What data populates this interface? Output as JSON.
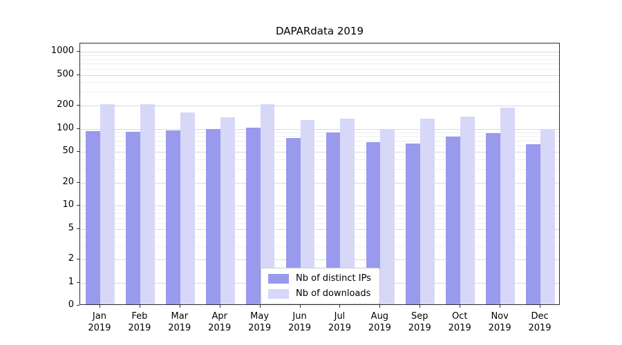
{
  "chart_data": {
    "type": "bar",
    "title": "DAPARdata 2019",
    "yscale": "symlog",
    "grid": true,
    "legend_position": "lower center",
    "categories": [
      "Jan",
      "Feb",
      "Mar",
      "Apr",
      "May",
      "Jun",
      "Jul",
      "Aug",
      "Sep",
      "Oct",
      "Nov",
      "Dec"
    ],
    "category_year": "2019",
    "yticks": [
      1000,
      500,
      200,
      100,
      50,
      20,
      10,
      5,
      2,
      1,
      0
    ],
    "ylim": [
      0,
      1400
    ],
    "series": [
      {
        "name": "Nb of distinct IPs",
        "color": "#9999ed",
        "values": [
          90,
          88,
          92,
          96,
          100,
          73,
          86,
          64,
          62,
          76,
          84,
          61
        ]
      },
      {
        "name": "Nb of downloads",
        "color": "#d7d7f8",
        "values": [
          200,
          200,
          155,
          135,
          200,
          125,
          130,
          96,
          130,
          138,
          180,
          95
        ]
      }
    ]
  }
}
